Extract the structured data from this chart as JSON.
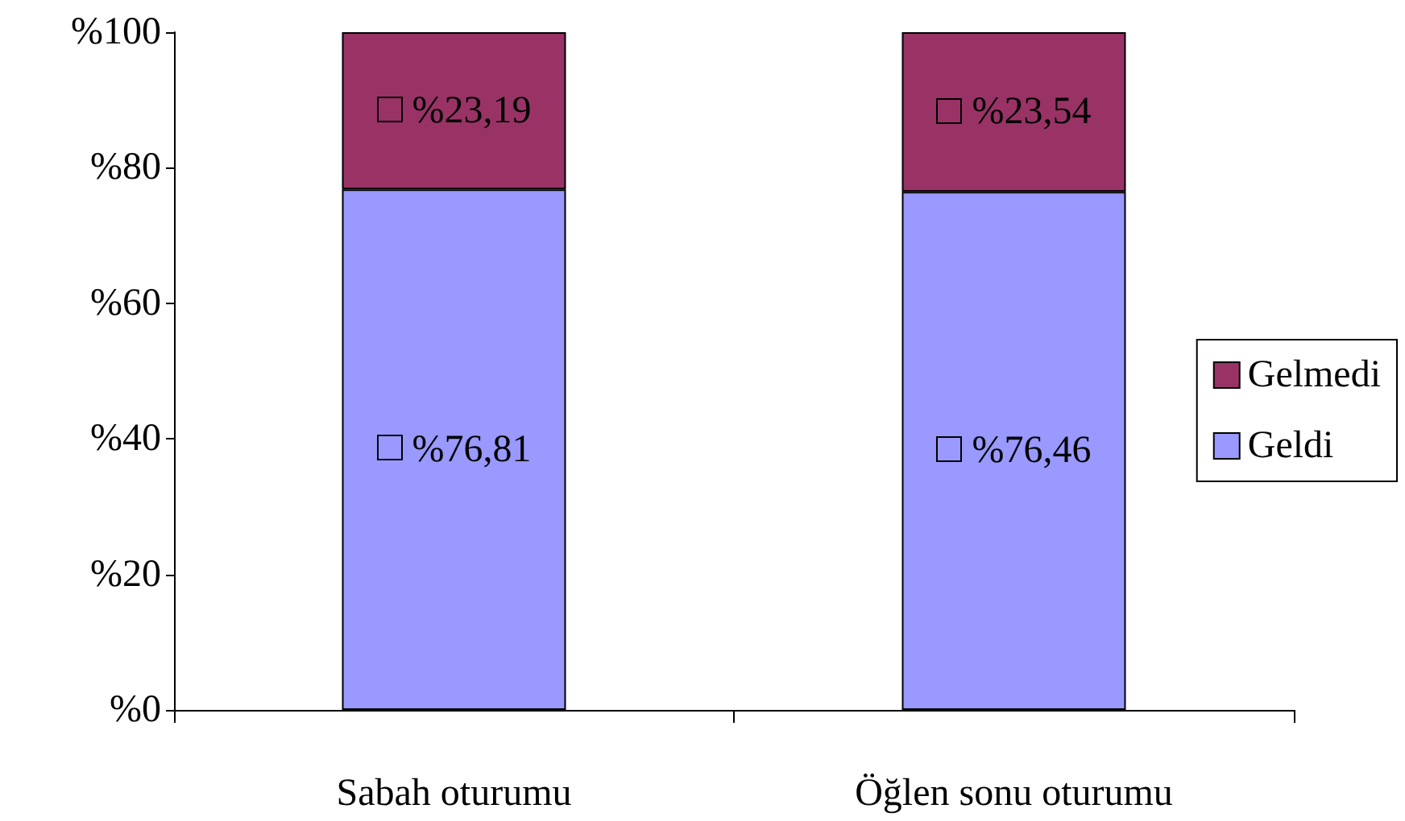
{
  "chart_data": {
    "type": "bar",
    "stacked": true,
    "categories": [
      "Sabah oturumu",
      "Öğlen sonu oturumu"
    ],
    "series": [
      {
        "name": "Geldi",
        "color": "#9999ff",
        "values": [
          76.81,
          76.46
        ],
        "value_labels": [
          "%76,81",
          "%76,46"
        ]
      },
      {
        "name": "Gelmedi",
        "color": "#993366",
        "values": [
          23.19,
          23.54
        ],
        "value_labels": [
          "%23,19",
          "%23,54"
        ]
      }
    ],
    "ylim": [
      0,
      100
    ],
    "yticks": [
      {
        "value": 0,
        "label": "%0"
      },
      {
        "value": 20,
        "label": "%20"
      },
      {
        "value": 40,
        "label": "%40"
      },
      {
        "value": 60,
        "label": "%60"
      },
      {
        "value": 80,
        "label": "%80"
      },
      {
        "value": 100,
        "label": "%100"
      }
    ],
    "grid": false,
    "legend": "right"
  }
}
